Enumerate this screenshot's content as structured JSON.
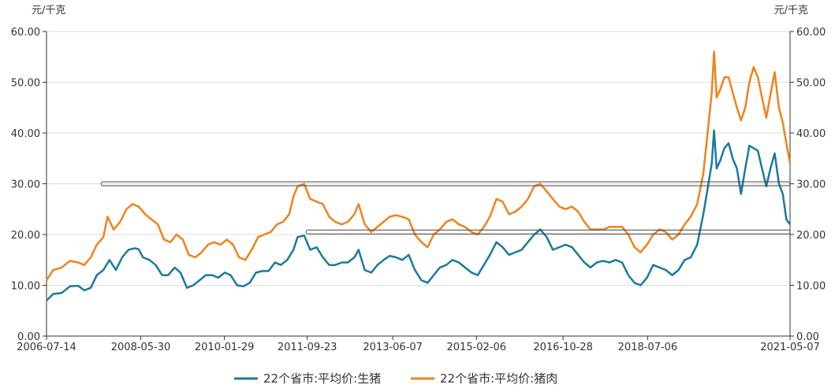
{
  "chart_data": {
    "type": "line",
    "left_unit": "元/千克",
    "right_unit": "元/千克",
    "ylim": [
      0,
      60
    ],
    "y_ticks": [
      "0.00",
      "10.00",
      "20.00",
      "30.00",
      "40.00",
      "50.00",
      "60.00"
    ],
    "y_tick_values": [
      0,
      10,
      20,
      30,
      40,
      50,
      60
    ],
    "x_ticks": [
      "2006-07-14",
      "2008-05-30",
      "2010-01-29",
      "2011-09-23",
      "2013-06-07",
      "2015-02-06",
      "2016-10-28",
      "2018-07-06",
      "2021-05-07"
    ],
    "x_tick_dates": [
      "2006-07-14",
      "2008-05-30",
      "2010-01-29",
      "2011-09-23",
      "2013-06-07",
      "2015-02-06",
      "2016-10-28",
      "2018-07-06",
      "2021-05-07"
    ],
    "xlim": [
      "2006-07-14",
      "2021-05-07"
    ],
    "grid": true,
    "legend_position": "bottom",
    "series": [
      {
        "name": "22个省市:平均价:生猪",
        "color": "#1A7A9E",
        "points": [
          [
            "2006-07-14",
            7.0
          ],
          [
            "2006-09-01",
            8.3
          ],
          [
            "2006-11-01",
            8.5
          ],
          [
            "2007-01-01",
            9.8
          ],
          [
            "2007-03-01",
            9.9
          ],
          [
            "2007-04-15",
            9.0
          ],
          [
            "2007-06-01",
            9.5
          ],
          [
            "2007-07-15",
            12.0
          ],
          [
            "2007-09-01",
            13.0
          ],
          [
            "2007-10-15",
            15.0
          ],
          [
            "2007-12-01",
            13.0
          ],
          [
            "2008-01-15",
            15.5
          ],
          [
            "2008-03-01",
            17.0
          ],
          [
            "2008-04-15",
            17.3
          ],
          [
            "2008-05-15",
            17.1
          ],
          [
            "2008-06-15",
            15.5
          ],
          [
            "2008-08-01",
            15.0
          ],
          [
            "2008-09-15",
            14.0
          ],
          [
            "2008-11-01",
            12.0
          ],
          [
            "2008-12-15",
            12.0
          ],
          [
            "2009-02-01",
            13.5
          ],
          [
            "2009-03-15",
            12.5
          ],
          [
            "2009-05-01",
            9.5
          ],
          [
            "2009-06-15",
            10.0
          ],
          [
            "2009-08-01",
            11.0
          ],
          [
            "2009-09-15",
            12.0
          ],
          [
            "2009-11-01",
            12.0
          ],
          [
            "2009-12-15",
            11.5
          ],
          [
            "2010-02-01",
            12.5
          ],
          [
            "2010-03-15",
            12.0
          ],
          [
            "2010-05-01",
            10.0
          ],
          [
            "2010-06-15",
            9.8
          ],
          [
            "2010-08-01",
            10.5
          ],
          [
            "2010-09-15",
            12.5
          ],
          [
            "2010-11-01",
            12.8
          ],
          [
            "2010-12-15",
            12.8
          ],
          [
            "2011-02-01",
            14.5
          ],
          [
            "2011-03-15",
            14.0
          ],
          [
            "2011-05-01",
            15.0
          ],
          [
            "2011-06-15",
            17.0
          ],
          [
            "2011-07-15",
            19.5
          ],
          [
            "2011-09-01",
            19.8
          ],
          [
            "2011-10-15",
            17.0
          ],
          [
            "2011-12-01",
            17.5
          ],
          [
            "2012-01-15",
            15.5
          ],
          [
            "2012-03-01",
            14.0
          ],
          [
            "2012-04-15",
            14.0
          ],
          [
            "2012-06-01",
            14.5
          ],
          [
            "2012-07-15",
            14.5
          ],
          [
            "2012-09-01",
            15.5
          ],
          [
            "2012-10-01",
            17.0
          ],
          [
            "2012-11-15",
            13.0
          ],
          [
            "2013-01-01",
            12.5
          ],
          [
            "2013-02-15",
            14.0
          ],
          [
            "2013-04-01",
            15.0
          ],
          [
            "2013-05-15",
            15.8
          ],
          [
            "2013-07-01",
            15.5
          ],
          [
            "2013-08-15",
            15.0
          ],
          [
            "2013-10-01",
            16.0
          ],
          [
            "2013-11-15",
            13.0
          ],
          [
            "2014-01-01",
            11.0
          ],
          [
            "2014-02-15",
            10.5
          ],
          [
            "2014-04-01",
            12.0
          ],
          [
            "2014-05-15",
            13.5
          ],
          [
            "2014-07-01",
            14.0
          ],
          [
            "2014-08-15",
            15.0
          ],
          [
            "2014-10-01",
            14.5
          ],
          [
            "2014-11-15",
            13.5
          ],
          [
            "2015-01-01",
            12.5
          ],
          [
            "2015-02-15",
            12.0
          ],
          [
            "2015-04-01",
            14.0
          ],
          [
            "2015-05-15",
            16.0
          ],
          [
            "2015-07-01",
            18.5
          ],
          [
            "2015-08-15",
            17.5
          ],
          [
            "2015-10-01",
            16.0
          ],
          [
            "2015-11-15",
            16.5
          ],
          [
            "2016-01-01",
            17.0
          ],
          [
            "2016-02-15",
            18.5
          ],
          [
            "2016-04-01",
            20.0
          ],
          [
            "2016-05-15",
            21.0
          ],
          [
            "2016-07-01",
            19.5
          ],
          [
            "2016-08-15",
            17.0
          ],
          [
            "2016-10-01",
            17.5
          ],
          [
            "2016-11-15",
            18.0
          ],
          [
            "2017-01-01",
            17.5
          ],
          [
            "2017-02-15",
            16.0
          ],
          [
            "2017-04-01",
            14.5
          ],
          [
            "2017-05-15",
            13.5
          ],
          [
            "2017-07-01",
            14.5
          ],
          [
            "2017-08-15",
            14.8
          ],
          [
            "2017-10-01",
            14.5
          ],
          [
            "2017-11-15",
            15.0
          ],
          [
            "2018-01-01",
            14.5
          ],
          [
            "2018-02-15",
            12.0
          ],
          [
            "2018-04-01",
            10.5
          ],
          [
            "2018-05-15",
            10.0
          ],
          [
            "2018-07-01",
            11.5
          ],
          [
            "2018-08-15",
            14.0
          ],
          [
            "2018-10-01",
            13.5
          ],
          [
            "2018-11-15",
            13.0
          ],
          [
            "2019-01-01",
            12.0
          ],
          [
            "2019-02-15",
            13.0
          ],
          [
            "2019-04-01",
            15.0
          ],
          [
            "2019-05-15",
            15.5
          ],
          [
            "2019-07-01",
            18.0
          ],
          [
            "2019-08-15",
            24.0
          ],
          [
            "2019-09-15",
            29.0
          ],
          [
            "2019-10-15",
            34.0
          ],
          [
            "2019-11-01",
            40.5
          ],
          [
            "2019-11-20",
            33.0
          ],
          [
            "2019-12-15",
            34.5
          ],
          [
            "2020-01-15",
            37.0
          ],
          [
            "2020-02-15",
            38.0
          ],
          [
            "2020-03-15",
            35.0
          ],
          [
            "2020-04-15",
            33.0
          ],
          [
            "2020-05-15",
            28.0
          ],
          [
            "2020-06-15",
            33.0
          ],
          [
            "2020-07-15",
            37.5
          ],
          [
            "2020-08-15",
            37.0
          ],
          [
            "2020-09-15",
            36.5
          ],
          [
            "2020-10-15",
            33.0
          ],
          [
            "2020-11-15",
            29.5
          ],
          [
            "2020-12-15",
            33.0
          ],
          [
            "2021-01-15",
            36.0
          ],
          [
            "2021-02-15",
            30.0
          ],
          [
            "2021-03-15",
            28.0
          ],
          [
            "2021-04-10",
            23.0
          ],
          [
            "2021-05-07",
            22.0
          ]
        ]
      },
      {
        "name": "22个省市:平均价:猪肉",
        "color": "#F0831C",
        "points": [
          [
            "2006-07-14",
            11.0
          ],
          [
            "2006-09-01",
            13.0
          ],
          [
            "2006-11-01",
            13.5
          ],
          [
            "2007-01-01",
            14.8
          ],
          [
            "2007-03-01",
            14.5
          ],
          [
            "2007-04-15",
            14.0
          ],
          [
            "2007-06-01",
            15.5
          ],
          [
            "2007-07-15",
            18.0
          ],
          [
            "2007-09-01",
            19.5
          ],
          [
            "2007-10-01",
            23.5
          ],
          [
            "2007-11-15",
            21.0
          ],
          [
            "2008-01-01",
            22.5
          ],
          [
            "2008-02-15",
            25.0
          ],
          [
            "2008-04-01",
            26.0
          ],
          [
            "2008-05-15",
            25.5
          ],
          [
            "2008-07-01",
            24.0
          ],
          [
            "2008-08-15",
            23.0
          ],
          [
            "2008-10-01",
            22.0
          ],
          [
            "2008-11-15",
            19.0
          ],
          [
            "2009-01-01",
            18.5
          ],
          [
            "2009-02-15",
            20.0
          ],
          [
            "2009-04-01",
            19.0
          ],
          [
            "2009-05-15",
            16.0
          ],
          [
            "2009-07-01",
            15.5
          ],
          [
            "2009-08-15",
            16.5
          ],
          [
            "2009-10-01",
            18.0
          ],
          [
            "2009-11-15",
            18.5
          ],
          [
            "2010-01-01",
            18.0
          ],
          [
            "2010-02-15",
            19.0
          ],
          [
            "2010-04-01",
            18.0
          ],
          [
            "2010-05-15",
            15.5
          ],
          [
            "2010-07-01",
            15.0
          ],
          [
            "2010-08-15",
            17.0
          ],
          [
            "2010-10-01",
            19.5
          ],
          [
            "2010-11-15",
            20.0
          ],
          [
            "2011-01-01",
            20.5
          ],
          [
            "2011-02-15",
            22.0
          ],
          [
            "2011-04-01",
            22.5
          ],
          [
            "2011-05-15",
            24.0
          ],
          [
            "2011-06-15",
            27.5
          ],
          [
            "2011-07-15",
            29.5
          ],
          [
            "2011-09-01",
            30.0
          ],
          [
            "2011-10-15",
            27.0
          ],
          [
            "2011-12-01",
            26.5
          ],
          [
            "2012-01-15",
            26.0
          ],
          [
            "2012-03-01",
            23.5
          ],
          [
            "2012-04-15",
            22.5
          ],
          [
            "2012-06-01",
            22.0
          ],
          [
            "2012-07-15",
            22.5
          ],
          [
            "2012-09-01",
            24.0
          ],
          [
            "2012-10-01",
            26.0
          ],
          [
            "2012-11-15",
            22.0
          ],
          [
            "2013-01-01",
            20.5
          ],
          [
            "2013-02-15",
            21.5
          ],
          [
            "2013-04-01",
            22.5
          ],
          [
            "2013-05-15",
            23.5
          ],
          [
            "2013-07-01",
            23.8
          ],
          [
            "2013-08-15",
            23.5
          ],
          [
            "2013-10-01",
            23.0
          ],
          [
            "2013-11-15",
            20.0
          ],
          [
            "2014-01-01",
            18.5
          ],
          [
            "2014-02-15",
            17.5
          ],
          [
            "2014-04-01",
            20.0
          ],
          [
            "2014-05-15",
            21.0
          ],
          [
            "2014-07-01",
            22.5
          ],
          [
            "2014-08-15",
            23.0
          ],
          [
            "2014-10-01",
            22.0
          ],
          [
            "2014-11-15",
            21.5
          ],
          [
            "2015-01-01",
            20.5
          ],
          [
            "2015-02-15",
            20.0
          ],
          [
            "2015-04-01",
            21.5
          ],
          [
            "2015-05-15",
            23.5
          ],
          [
            "2015-07-01",
            27.0
          ],
          [
            "2015-08-15",
            26.5
          ],
          [
            "2015-10-01",
            24.0
          ],
          [
            "2015-11-15",
            24.5
          ],
          [
            "2016-01-01",
            25.5
          ],
          [
            "2016-02-15",
            27.0
          ],
          [
            "2016-04-01",
            29.5
          ],
          [
            "2016-05-15",
            30.0
          ],
          [
            "2016-07-01",
            28.5
          ],
          [
            "2016-08-15",
            27.0
          ],
          [
            "2016-10-01",
            25.5
          ],
          [
            "2016-11-15",
            25.0
          ],
          [
            "2017-01-01",
            25.5
          ],
          [
            "2017-02-15",
            24.5
          ],
          [
            "2017-04-01",
            22.5
          ],
          [
            "2017-05-15",
            21.0
          ],
          [
            "2017-07-01",
            21.0
          ],
          [
            "2017-08-15",
            21.0
          ],
          [
            "2017-10-01",
            21.5
          ],
          [
            "2017-11-15",
            21.5
          ],
          [
            "2018-01-01",
            21.5
          ],
          [
            "2018-02-15",
            20.0
          ],
          [
            "2018-04-01",
            17.5
          ],
          [
            "2018-05-15",
            16.5
          ],
          [
            "2018-07-01",
            18.0
          ],
          [
            "2018-08-15",
            20.0
          ],
          [
            "2018-10-01",
            21.0
          ],
          [
            "2018-11-15",
            20.5
          ],
          [
            "2019-01-01",
            19.0
          ],
          [
            "2019-02-15",
            20.0
          ],
          [
            "2019-04-01",
            22.0
          ],
          [
            "2019-05-15",
            23.5
          ],
          [
            "2019-07-01",
            26.0
          ],
          [
            "2019-08-15",
            32.0
          ],
          [
            "2019-09-15",
            40.0
          ],
          [
            "2019-10-15",
            48.0
          ],
          [
            "2019-11-01",
            56.0
          ],
          [
            "2019-11-20",
            47.0
          ],
          [
            "2019-12-15",
            48.5
          ],
          [
            "2020-01-15",
            51.0
          ],
          [
            "2020-02-15",
            51.0
          ],
          [
            "2020-03-15",
            48.0
          ],
          [
            "2020-04-15",
            45.0
          ],
          [
            "2020-05-15",
            42.5
          ],
          [
            "2020-06-15",
            45.0
          ],
          [
            "2020-07-15",
            50.0
          ],
          [
            "2020-08-15",
            53.0
          ],
          [
            "2020-09-15",
            51.0
          ],
          [
            "2020-10-15",
            47.0
          ],
          [
            "2020-11-15",
            43.0
          ],
          [
            "2020-12-15",
            47.5
          ],
          [
            "2021-01-15",
            52.0
          ],
          [
            "2021-02-15",
            45.0
          ],
          [
            "2021-03-15",
            42.0
          ],
          [
            "2021-04-10",
            38.0
          ],
          [
            "2021-05-07",
            34.0
          ]
        ]
      }
    ],
    "reference_boxes": [
      {
        "y": 30,
        "x_start": "2007-08-15",
        "x_end": "2021-05-07"
      },
      {
        "y": 20.5,
        "x_start": "2011-09-15",
        "x_end": "2021-05-07"
      }
    ]
  }
}
